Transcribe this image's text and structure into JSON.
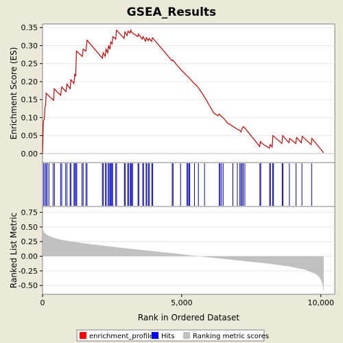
{
  "chart_data": {
    "type": "line",
    "title": "GSEA_Results",
    "xlabel": "Rank in Ordered Dataset",
    "xlim": [
      0,
      10500
    ],
    "x_ticks": [
      0,
      5000,
      10000
    ],
    "x_tick_labels": [
      "0",
      "5,000",
      "10,000"
    ],
    "panels": {
      "enrichment": {
        "ylabel": "Enrichment Score (ES)",
        "ylim": [
          -0.025,
          0.36
        ],
        "y_ticks": [
          0.0,
          0.05,
          0.1,
          0.15,
          0.2,
          0.25,
          0.3,
          0.35
        ],
        "y_tick_labels": [
          "0.00",
          "0.05",
          "0.10",
          "0.15",
          "0.20",
          "0.25",
          "0.30",
          "0.35"
        ],
        "color": "#cc0000",
        "x": [
          0,
          30,
          60,
          90,
          110,
          130,
          160,
          400,
          420,
          650,
          690,
          840,
          880,
          990,
          1020,
          1130,
          1160,
          1190,
          1220,
          1430,
          1460,
          1560,
          1600,
          2150,
          2180,
          2250,
          2280,
          2340,
          2370,
          2420,
          2450,
          2500,
          2530,
          2630,
          2660,
          2930,
          2960,
          3040,
          3070,
          3140,
          3170,
          3190,
          3220,
          3420,
          3450,
          3580,
          3610,
          3700,
          3730,
          3800,
          3830,
          3920,
          3950,
          4650,
          4680,
          4950,
          5200,
          5250,
          5450,
          5580,
          5800,
          6150,
          6300,
          6350,
          6400,
          6480,
          6650,
          6850,
          6990,
          7080,
          7130,
          7170,
          7210,
          7280,
          7800,
          7830,
          7850,
          8150,
          8180,
          8250,
          8280,
          8600,
          8630,
          8850,
          8880,
          9100,
          9130,
          9300,
          9330,
          9650,
          9680,
          10100
        ],
        "y": [
          0.0,
          0.09,
          0.095,
          0.13,
          0.135,
          0.168,
          0.165,
          0.148,
          0.18,
          0.162,
          0.185,
          0.172,
          0.193,
          0.18,
          0.205,
          0.195,
          0.22,
          0.215,
          0.285,
          0.27,
          0.29,
          0.285,
          0.315,
          0.265,
          0.28,
          0.27,
          0.29,
          0.28,
          0.3,
          0.29,
          0.31,
          0.305,
          0.325,
          0.318,
          0.343,
          0.32,
          0.338,
          0.328,
          0.34,
          0.335,
          0.343,
          0.338,
          0.336,
          0.325,
          0.332,
          0.318,
          0.325,
          0.312,
          0.322,
          0.314,
          0.32,
          0.312,
          0.322,
          0.258,
          0.26,
          0.235,
          0.215,
          0.212,
          0.195,
          0.185,
          0.16,
          0.113,
          0.105,
          0.11,
          0.105,
          0.1,
          0.085,
          0.075,
          0.068,
          0.065,
          0.06,
          0.07,
          0.075,
          0.07,
          0.02,
          0.035,
          0.03,
          0.015,
          0.025,
          0.018,
          0.05,
          0.028,
          0.05,
          0.03,
          0.042,
          0.028,
          0.045,
          0.03,
          0.048,
          0.025,
          0.042,
          0.002
        ]
      },
      "hits": {
        "color": "#0000cc",
        "positions": [
          40,
          90,
          130,
          170,
          230,
          380,
          430,
          650,
          690,
          830,
          880,
          990,
          1020,
          1130,
          1160,
          1200,
          1230,
          1420,
          1460,
          1560,
          1600,
          2150,
          2180,
          2260,
          2290,
          2360,
          2390,
          2430,
          2460,
          2490,
          2520,
          2630,
          2660,
          2940,
          2970,
          3060,
          3090,
          3150,
          3180,
          3200,
          3240,
          3430,
          3460,
          3600,
          3630,
          3720,
          3750,
          3810,
          3840,
          3930,
          3960,
          4660,
          4690,
          4960,
          5190,
          5220,
          5260,
          5290,
          5460,
          5600,
          5820,
          6350,
          6380,
          6430,
          6490,
          6840,
          7000,
          7090,
          7130,
          7170,
          7210,
          7270,
          7810,
          7840,
          8160,
          8190,
          8270,
          8300,
          8610,
          8640,
          8870,
          9110,
          9320,
          9670
        ]
      },
      "metric": {
        "ylabel": "Ranked List Metric",
        "ylim": [
          -0.65,
          0.85
        ],
        "y_ticks": [
          0.75,
          0.5,
          0.25,
          0.0,
          -0.25,
          -0.5
        ],
        "y_tick_labels": [
          "0.75",
          "0.50",
          "0.25",
          "0.00",
          "-0.25",
          "-0.50"
        ],
        "color": "#c0c0c0",
        "rank": [
          0,
          10,
          30,
          60,
          100,
          200,
          400,
          700,
          1000,
          1500,
          2000,
          3000,
          4000,
          5000,
          5600,
          6000,
          7000,
          8000,
          8800,
          9400,
          9800,
          9950,
          10020,
          10060,
          10080,
          10100
        ],
        "value": [
          0.57,
          0.48,
          0.44,
          0.41,
          0.385,
          0.355,
          0.315,
          0.28,
          0.255,
          0.22,
          0.19,
          0.135,
          0.085,
          0.035,
          0.0,
          -0.02,
          -0.07,
          -0.12,
          -0.17,
          -0.225,
          -0.3,
          -0.36,
          -0.42,
          -0.48,
          -0.55,
          -0.62
        ]
      }
    },
    "legend": {
      "placement": "bottom",
      "items": [
        {
          "label": "enrichment_profile",
          "color": "#ff0000"
        },
        {
          "label": "Hits",
          "color": "#0000ff"
        },
        {
          "label": "Ranking metric scores",
          "color": "#c0c0c0"
        }
      ]
    }
  }
}
